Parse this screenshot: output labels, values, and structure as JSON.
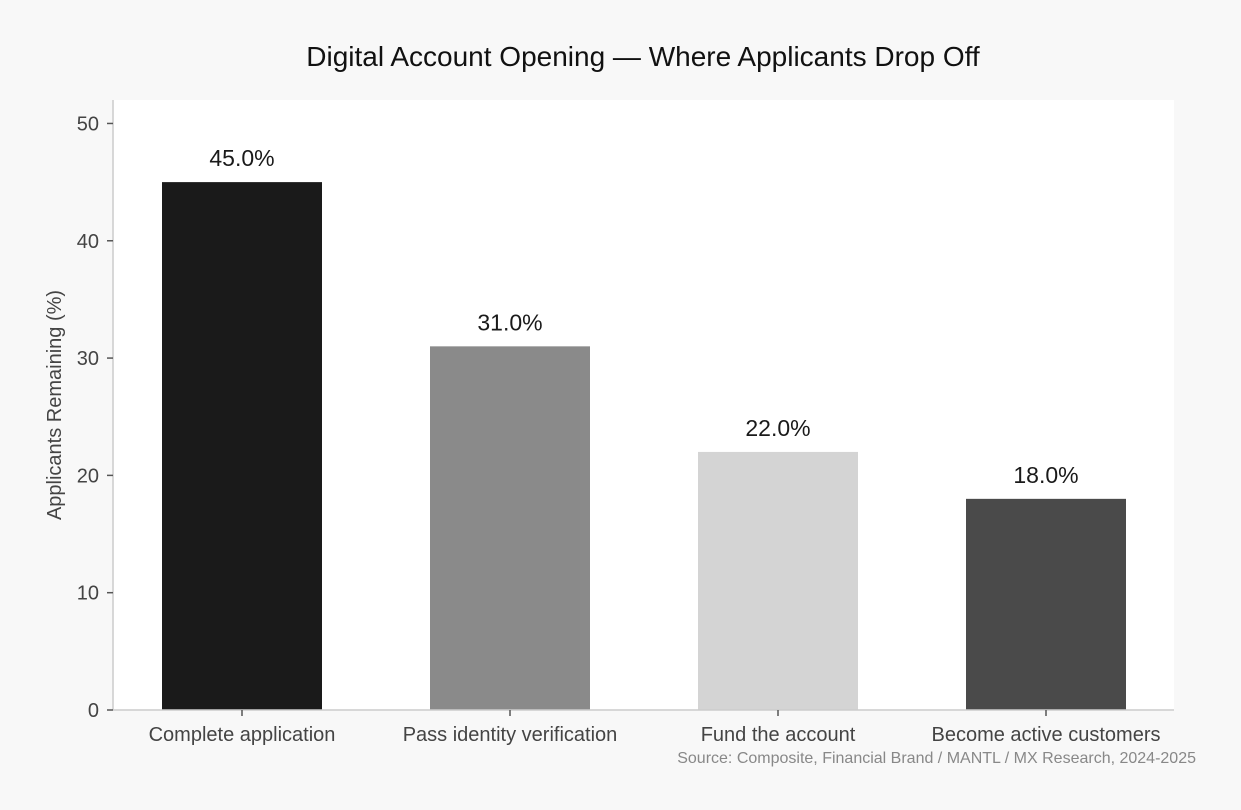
{
  "chart_data": {
    "type": "bar",
    "title": "Digital Account Opening — Where Applicants Drop Off",
    "xlabel": "",
    "ylabel": "Applicants Remaining (%)",
    "categories": [
      "Complete application",
      "Pass identity verification",
      "Fund the account",
      "Become active customers"
    ],
    "values": [
      45.0,
      31.0,
      22.0,
      18.0
    ],
    "value_labels": [
      "45.0%",
      "31.0%",
      "22.0%",
      "18.0%"
    ],
    "bar_colors": [
      "#1a1a1a",
      "#8a8a8a",
      "#d4d4d4",
      "#4a4a4a"
    ],
    "ylim": [
      0,
      52
    ],
    "yticks": [
      0,
      10,
      20,
      30,
      40,
      50
    ],
    "ytick_labels": [
      "0",
      "10",
      "20",
      "30",
      "40",
      "50"
    ],
    "grid": false,
    "legend": "none",
    "source": "Source: Composite, Financial Brand / MANTL / MX Research, 2024-2025"
  }
}
